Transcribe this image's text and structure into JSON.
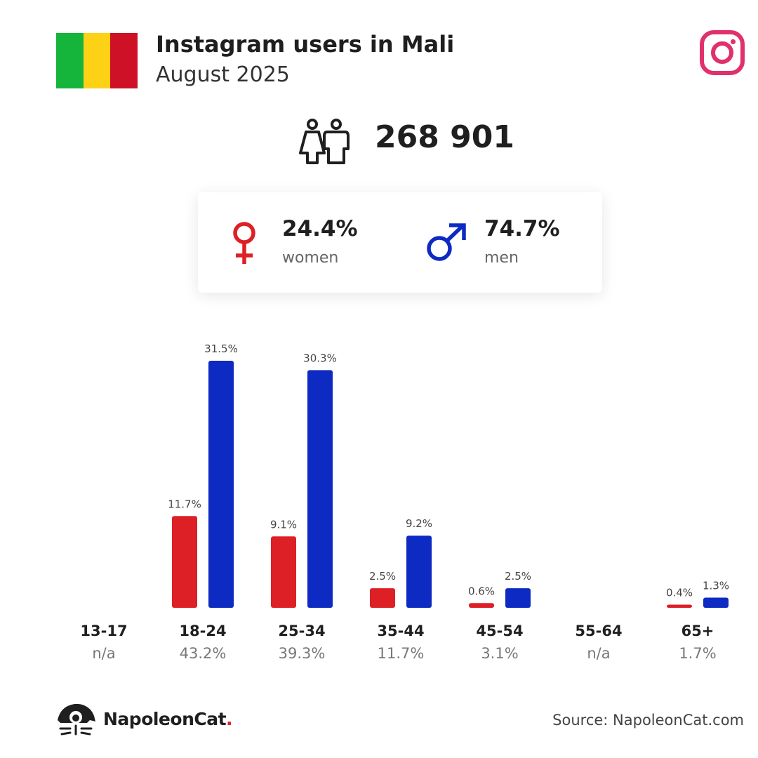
{
  "header": {
    "title": "Instagram users in Mali",
    "subtitle": "August 2025",
    "flag_colors": [
      "#14b53a",
      "#fcd116",
      "#ce1126"
    ]
  },
  "total": {
    "value": "268 901",
    "icon": "people-icon"
  },
  "gender": {
    "women": {
      "pct": "24.4%",
      "label": "women",
      "icon": "female-symbol-icon",
      "color": "#dd1f26"
    },
    "men": {
      "pct": "74.7%",
      "label": "men",
      "icon": "male-symbol-icon",
      "color": "#0d2ac2"
    }
  },
  "chart_data": {
    "type": "bar",
    "categories": [
      "13-17",
      "18-24",
      "25-34",
      "35-44",
      "45-54",
      "55-64",
      "65+"
    ],
    "group_totals": [
      "n/a",
      "43.2%",
      "39.3%",
      "11.7%",
      "3.1%",
      "n/a",
      "1.7%"
    ],
    "series": [
      {
        "name": "women",
        "color": "#dd1f26",
        "values": [
          null,
          11.7,
          9.1,
          2.5,
          0.6,
          null,
          0.4
        ],
        "labels": [
          null,
          "11.7%",
          "9.1%",
          "2.5%",
          "0.6%",
          null,
          "0.4%"
        ]
      },
      {
        "name": "men",
        "color": "#0d2ac2",
        "values": [
          null,
          31.5,
          30.3,
          9.2,
          2.5,
          null,
          1.3
        ],
        "labels": [
          null,
          "31.5%",
          "30.3%",
          "9.2%",
          "2.5%",
          null,
          "1.3%"
        ]
      }
    ],
    "ylim": [
      0,
      31.5
    ],
    "grid": false
  },
  "footer": {
    "brand": "NapoleonCat",
    "brand_dot": ".",
    "source": "Source: NapoleonCat.com",
    "logo_icon": "napoleoncat-logo-icon"
  },
  "colors": {
    "instagram": "#e1306c",
    "text": "#1f1f1f"
  }
}
